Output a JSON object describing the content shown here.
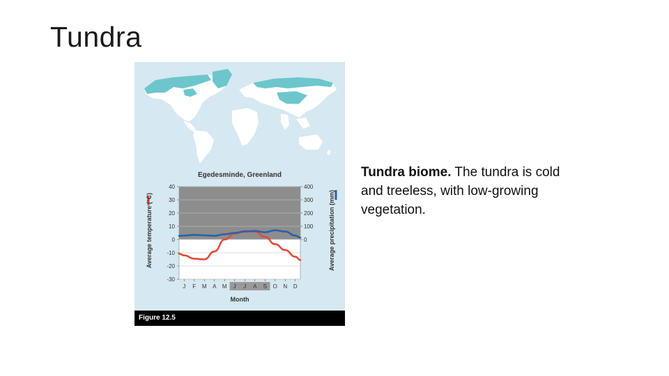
{
  "slide": {
    "title": "Tundra",
    "description_bold": "Tundra biome.",
    "description_rest": " The tundra is cold and treeless, with low-growing vegetation."
  },
  "figure": {
    "caption": "Figure 12.5",
    "map_colors": {
      "land": "#ffffff",
      "tundra": "#6cc6cc",
      "water": "#d6e8f1"
    }
  },
  "chart_data": {
    "type": "line",
    "title": "Egedesminde, Greenland",
    "xlabel": "Month",
    "categories": [
      "J",
      "F",
      "M",
      "A",
      "M",
      "J",
      "J",
      "A",
      "S",
      "O",
      "N",
      "D"
    ],
    "growing_season_months": [
      "J",
      "J",
      "A",
      "S"
    ],
    "y_left": {
      "label": "Average temperature (°C)",
      "ticks": [
        40,
        30,
        20,
        10,
        0,
        -10,
        -20,
        -30
      ],
      "range": [
        -30,
        40
      ]
    },
    "y_right": {
      "label": "Average precipitation (mm)",
      "ticks": [
        400,
        300,
        200,
        100,
        0
      ],
      "range": [
        -300,
        400
      ]
    },
    "series": [
      {
        "name": "temperature",
        "axis": "left",
        "color": "#e04a3a",
        "values": [
          -12,
          -14.5,
          -15,
          -9,
          0,
          4.5,
          6.5,
          6,
          2,
          -3.5,
          -8,
          -13
        ]
      },
      {
        "name": "precipitation",
        "axis": "right",
        "color": "#2a62a8",
        "values": [
          30,
          35,
          32,
          28,
          40,
          50,
          60,
          65,
          55,
          70,
          60,
          30
        ]
      }
    ],
    "grid": true
  }
}
